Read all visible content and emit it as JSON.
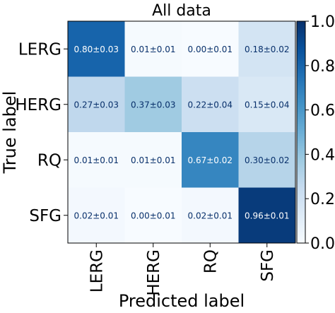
{
  "chart_data": {
    "type": "heatmap",
    "title": "All data",
    "xlabel": "Predicted label",
    "ylabel": "True label",
    "x_categories": [
      "LERG",
      "HERG",
      "RQ",
      "SFG"
    ],
    "y_categories": [
      "LERG",
      "HERG",
      "RQ",
      "SFG"
    ],
    "values": [
      [
        0.8,
        0.01,
        0.0,
        0.18
      ],
      [
        0.27,
        0.37,
        0.22,
        0.15
      ],
      [
        0.01,
        0.01,
        0.67,
        0.3
      ],
      [
        0.02,
        0.0,
        0.02,
        0.96
      ]
    ],
    "cell_labels": [
      [
        "0.80±0.03",
        "0.01±0.01",
        "0.00±0.01",
        "0.18±0.02"
      ],
      [
        "0.27±0.03",
        "0.37±0.03",
        "0.22±0.04",
        "0.15±0.04"
      ],
      [
        "0.01±0.01",
        "0.01±0.01",
        "0.67±0.02",
        "0.30±0.02"
      ],
      [
        "0.02±0.01",
        "0.00±0.01",
        "0.02±0.01",
        "0.96±0.01"
      ]
    ],
    "colorbar": {
      "colormap": "Blues",
      "range": [
        0.0,
        1.0
      ],
      "ticks": [
        "0.0",
        "0.2",
        "0.4",
        "0.6",
        "0.8",
        "1.0"
      ],
      "placement": "right"
    },
    "grid": false
  }
}
